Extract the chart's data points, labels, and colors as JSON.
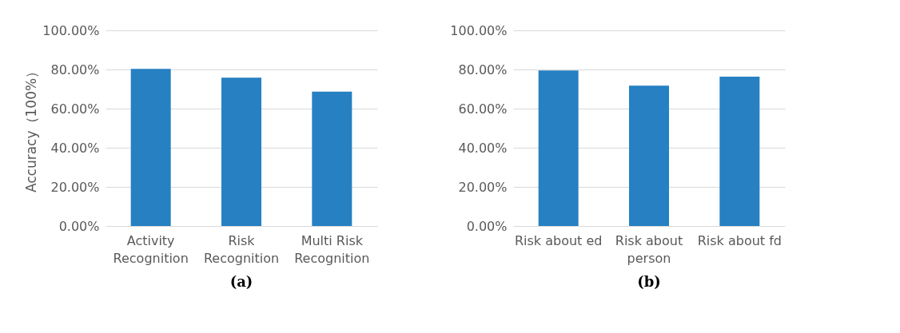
{
  "chart_data": [
    {
      "type": "bar",
      "ylabel": "Accuracy（100%）",
      "categories": [
        "Activity Recognition",
        "Risk Recognition",
        "Multi Risk Recognition"
      ],
      "values": [
        80.3,
        75.8,
        68.7
      ],
      "color": "#2680c2",
      "ylim": [
        0,
        100
      ],
      "yticks": [
        {
          "value": 0,
          "label": "0.00%"
        },
        {
          "value": 20,
          "label": "20.00%"
        },
        {
          "value": 40,
          "label": "40.00%"
        },
        {
          "value": 60,
          "label": "60.00%"
        },
        {
          "value": 80,
          "label": "80.00%"
        },
        {
          "value": 100,
          "label": "100.00%"
        }
      ],
      "grid": "y",
      "annotations": [
        "(a)"
      ]
    },
    {
      "type": "bar",
      "categories": [
        "Risk about ed",
        "Risk about person",
        "Risk about fd"
      ],
      "values": [
        79.5,
        71.7,
        76.3
      ],
      "color": "#2680c2",
      "ylim": [
        0,
        100
      ],
      "yticks": [
        {
          "value": 0,
          "label": "0.00%"
        },
        {
          "value": 20,
          "label": "20.00%"
        },
        {
          "value": 40,
          "label": "40.00%"
        },
        {
          "value": 60,
          "label": "60.00%"
        },
        {
          "value": 80,
          "label": "80.00%"
        },
        {
          "value": 100,
          "label": "100.00%"
        }
      ],
      "grid": "y",
      "annotations": [
        "(b)"
      ]
    }
  ]
}
